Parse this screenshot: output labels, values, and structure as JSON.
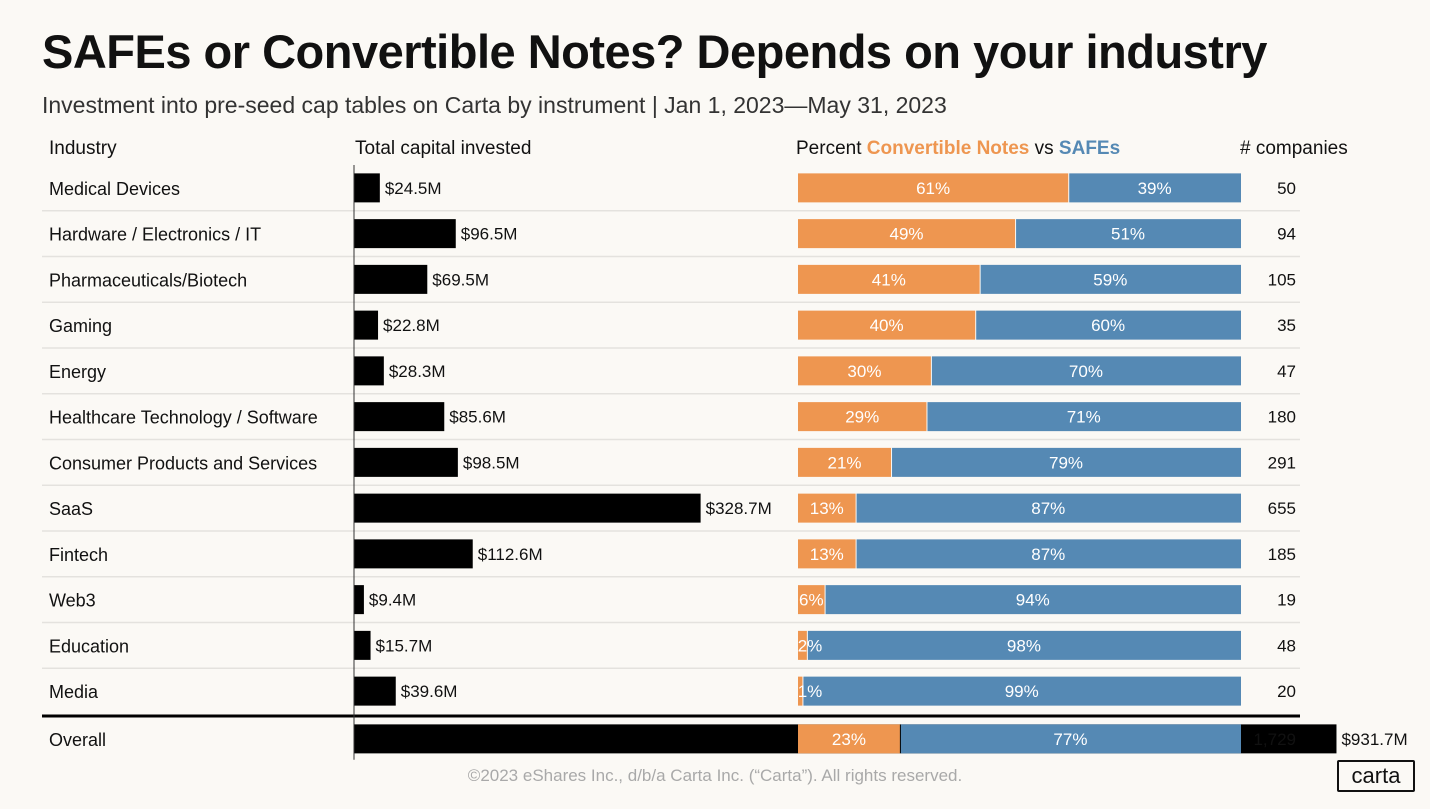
{
  "title": "SAFEs or Convertible Notes? Depends on your industry",
  "subtitle": "Investment into pre-seed cap tables on Carta by instrument  |  Jan 1, 2023—May 31, 2023",
  "headers": {
    "industry": "Industry",
    "capital": "Total capital invested",
    "percent_prefix": "Percent ",
    "percent_notes": "Convertible Notes",
    "percent_vs": " vs ",
    "percent_safes": "SAFEs",
    "count": "# companies"
  },
  "footer": "©2023 eShares Inc., d/b/a Carta Inc. (“Carta”). All rights reserved.",
  "logo": "carta",
  "colors": {
    "capital_bar": "#000000",
    "convertible_notes": "#ee9650",
    "safes": "#5589b4",
    "divider": "#e4e2de",
    "overall_divider": "#000000"
  },
  "chart_data": {
    "type": "bar",
    "categories": [
      "Medical Devices",
      "Hardware / Electronics / IT",
      "Pharmaceuticals/Biotech",
      "Gaming",
      "Energy",
      "Healthcare Technology / Software",
      "Consumer Products and Services",
      "SaaS",
      "Fintech",
      "Web3",
      "Education",
      "Media"
    ],
    "capital_values": [
      24.5,
      96.5,
      69.5,
      22.8,
      28.3,
      85.6,
      98.5,
      328.7,
      112.6,
      9.4,
      15.7,
      39.6
    ],
    "capital_labels": [
      "$24.5M",
      "$96.5M",
      "$69.5M",
      "$22.8M",
      "$28.3M",
      "$85.6M",
      "$98.5M",
      "$328.7M",
      "$112.6M",
      "$9.4M",
      "$15.7M",
      "$39.6M"
    ],
    "notes_pct": [
      61,
      49,
      41,
      40,
      30,
      29,
      21,
      13,
      13,
      6,
      2,
      1
    ],
    "safes_pct": [
      39,
      51,
      59,
      60,
      70,
      71,
      79,
      87,
      87,
      94,
      98,
      99
    ],
    "companies": [
      "50",
      "94",
      "105",
      "35",
      "47",
      "180",
      "291",
      "655",
      "185",
      "19",
      "48",
      "20"
    ],
    "overall": {
      "label": "Overall",
      "capital_value": 931.7,
      "capital_label": "$931.7M",
      "notes_pct": 23,
      "safes_pct": 77,
      "companies": "1,729"
    }
  }
}
